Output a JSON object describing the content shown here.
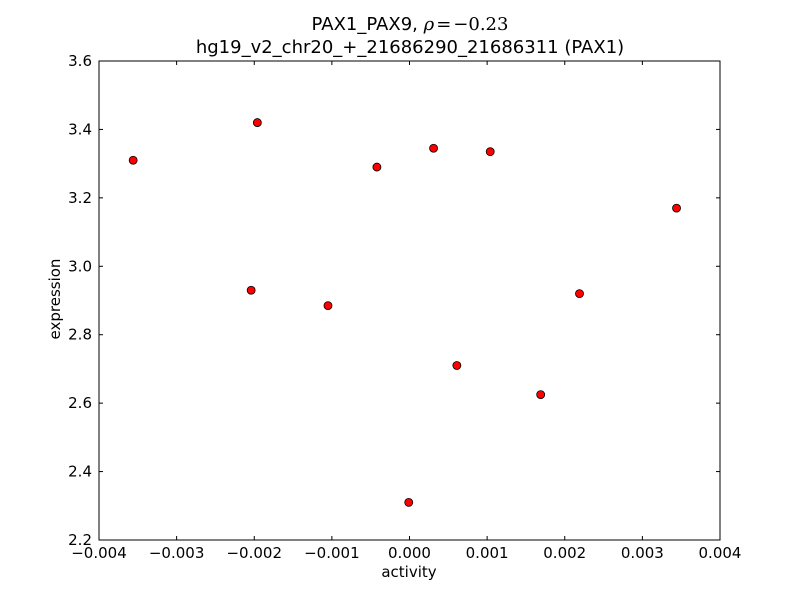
{
  "chart_data": {
    "type": "scatter",
    "title_line1_prefix": "PAX1_PAX9, ",
    "title_rho_symbol": "ρ",
    "title_rho_equals": "=",
    "title_rho_value": "−0.23",
    "title_line2": "hg19_v2_chr20_+_21686290_21686311 (PAX1)",
    "xlabel": "activity",
    "ylabel": "expression",
    "xlim": [
      -0.004,
      0.004
    ],
    "ylim": [
      2.2,
      3.6
    ],
    "xticks": [
      -0.004,
      -0.003,
      -0.002,
      -0.001,
      0.0,
      0.001,
      0.002,
      0.003,
      0.004
    ],
    "xtick_labels": [
      "−0.004",
      "−0.003",
      "−0.002",
      "−0.001",
      "0.000",
      "0.001",
      "0.002",
      "0.003",
      "0.004"
    ],
    "yticks": [
      2.2,
      2.4,
      2.6,
      2.8,
      3.0,
      3.2,
      3.4,
      3.6
    ],
    "ytick_labels": [
      "2.2",
      "2.4",
      "2.6",
      "2.8",
      "3.0",
      "3.2",
      "3.4",
      "3.6"
    ],
    "grid": false,
    "legend": "none",
    "marker_color": "#ff0000",
    "marker_edge_color": "#000000",
    "points": [
      {
        "x": -0.00356,
        "y": 3.31
      },
      {
        "x": -0.00196,
        "y": 3.42
      },
      {
        "x": -0.00204,
        "y": 2.93
      },
      {
        "x": -0.00105,
        "y": 2.885
      },
      {
        "x": -0.00042,
        "y": 3.29
      },
      {
        "x": -1e-05,
        "y": 2.31
      },
      {
        "x": 0.00031,
        "y": 3.345
      },
      {
        "x": 0.00061,
        "y": 2.71
      },
      {
        "x": 0.00104,
        "y": 3.335
      },
      {
        "x": 0.00169,
        "y": 2.625
      },
      {
        "x": 0.00219,
        "y": 2.92
      },
      {
        "x": 0.00344,
        "y": 3.17
      }
    ]
  }
}
